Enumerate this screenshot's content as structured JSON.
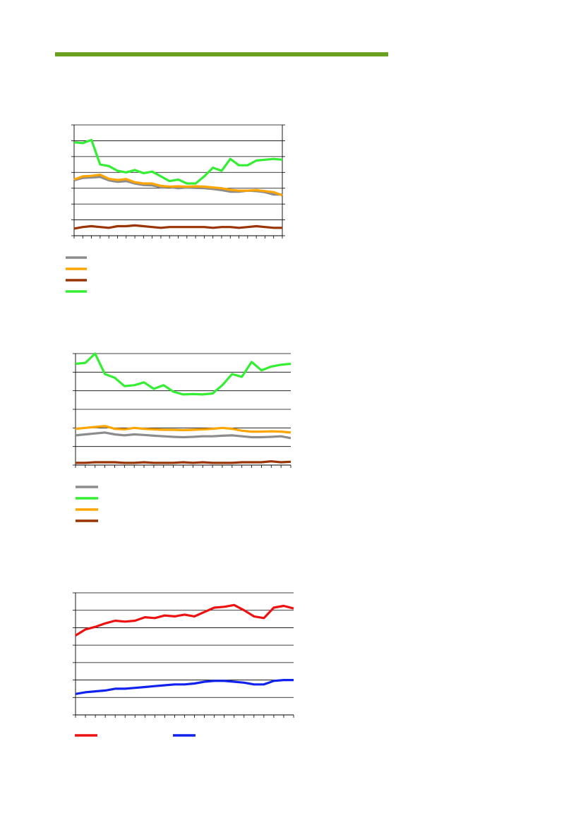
{
  "page": {
    "accent_color": "#6aa121"
  },
  "chart_data": [
    {
      "type": "line",
      "title": "",
      "xlabel": "",
      "ylabel": "",
      "ylim": [
        0,
        7
      ],
      "n_points": 25,
      "grid": true,
      "legend": "below",
      "series": [
        {
          "color": "#8c8c8c",
          "values": [
            3.5,
            3.65,
            3.68,
            3.72,
            3.5,
            3.4,
            3.45,
            3.3,
            3.2,
            3.18,
            3.05,
            3.08,
            3.0,
            3.05,
            3.02,
            3.0,
            2.95,
            2.88,
            2.78,
            2.78,
            2.85,
            2.82,
            2.75,
            2.6,
            2.6
          ]
        },
        {
          "color": "#ffa500",
          "values": [
            3.55,
            3.75,
            3.78,
            3.85,
            3.6,
            3.52,
            3.58,
            3.38,
            3.3,
            3.3,
            3.15,
            3.1,
            3.12,
            3.1,
            3.12,
            3.1,
            3.05,
            3.0,
            2.9,
            2.85,
            2.85,
            2.88,
            2.82,
            2.75,
            2.55
          ]
        },
        {
          "color": "#993300",
          "values": [
            0.45,
            0.55,
            0.6,
            0.55,
            0.5,
            0.6,
            0.6,
            0.65,
            0.6,
            0.55,
            0.5,
            0.55,
            0.55,
            0.55,
            0.55,
            0.55,
            0.5,
            0.55,
            0.55,
            0.5,
            0.55,
            0.6,
            0.55,
            0.5,
            0.5
          ]
        },
        {
          "color": "#33ee33",
          "values": [
            5.9,
            5.85,
            6.05,
            4.5,
            4.4,
            4.1,
            4.0,
            4.15,
            3.95,
            4.05,
            3.75,
            3.45,
            3.55,
            3.3,
            3.3,
            3.75,
            4.3,
            4.1,
            4.85,
            4.45,
            4.45,
            4.75,
            4.8,
            4.85,
            4.8
          ]
        }
      ]
    },
    {
      "type": "line",
      "title": "",
      "xlabel": "",
      "ylabel": "",
      "ylim": [
        0,
        6
      ],
      "n_points": 23,
      "grid": true,
      "legend": "below",
      "series": [
        {
          "color": "#8c8c8c",
          "values": [
            1.6,
            1.65,
            1.7,
            1.75,
            1.65,
            1.6,
            1.65,
            1.62,
            1.58,
            1.55,
            1.52,
            1.5,
            1.52,
            1.55,
            1.55,
            1.58,
            1.6,
            1.55,
            1.5,
            1.5,
            1.52,
            1.55,
            1.45
          ]
        },
        {
          "color": "#33ee33",
          "values": [
            5.45,
            5.5,
            6.0,
            4.9,
            4.7,
            4.25,
            4.3,
            4.45,
            4.1,
            4.3,
            3.95,
            3.8,
            3.82,
            3.8,
            3.85,
            4.3,
            4.9,
            4.75,
            5.55,
            5.1,
            5.3,
            5.4,
            5.45
          ]
        },
        {
          "color": "#ffa500",
          "values": [
            1.95,
            2.0,
            2.05,
            2.1,
            1.95,
            1.92,
            2.0,
            1.95,
            1.92,
            1.9,
            1.9,
            1.88,
            1.9,
            1.92,
            1.95,
            2.0,
            1.95,
            1.85,
            1.8,
            1.8,
            1.82,
            1.8,
            1.75
          ]
        },
        {
          "color": "#993300",
          "values": [
            0.12,
            0.12,
            0.15,
            0.15,
            0.15,
            0.12,
            0.12,
            0.15,
            0.12,
            0.12,
            0.12,
            0.15,
            0.12,
            0.15,
            0.12,
            0.12,
            0.12,
            0.15,
            0.15,
            0.15,
            0.2,
            0.15,
            0.18
          ]
        }
      ]
    },
    {
      "type": "line",
      "title": "",
      "xlabel": "",
      "ylabel": "",
      "ylim": [
        0,
        7
      ],
      "n_points": 23,
      "grid": true,
      "legend": "below",
      "series": [
        {
          "color": "#ee1111",
          "values": [
            4.55,
            4.9,
            5.05,
            5.25,
            5.4,
            5.35,
            5.4,
            5.6,
            5.55,
            5.7,
            5.65,
            5.75,
            5.65,
            5.9,
            6.15,
            6.2,
            6.3,
            6.0,
            5.65,
            5.55,
            6.15,
            6.25,
            6.1
          ]
        },
        {
          "color": "#1122ee",
          "values": [
            1.2,
            1.3,
            1.35,
            1.4,
            1.5,
            1.5,
            1.55,
            1.6,
            1.65,
            1.7,
            1.75,
            1.75,
            1.8,
            1.9,
            1.95,
            1.95,
            1.9,
            1.85,
            1.75,
            1.75,
            1.95,
            2.0,
            2.0
          ]
        }
      ]
    }
  ]
}
